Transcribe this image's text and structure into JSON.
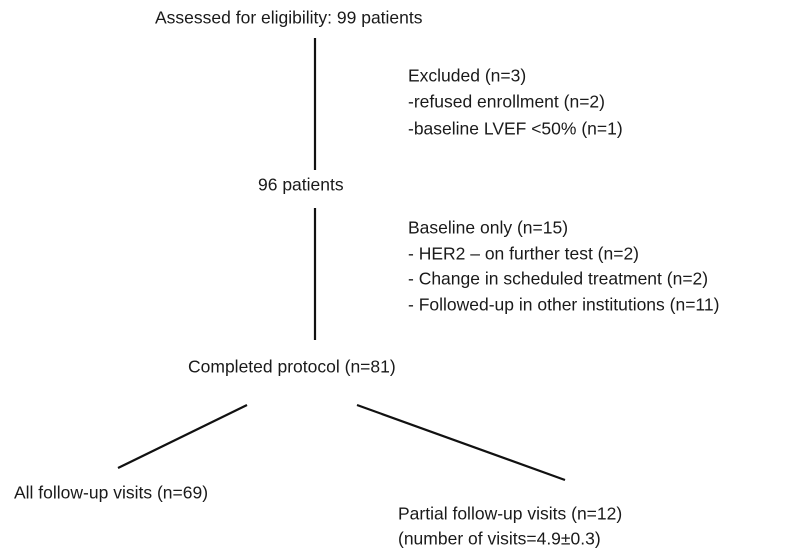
{
  "nodes": [
    {
      "lines": [
        "Assessed for eligibility: 99 patients"
      ]
    },
    {
      "lines": [
        "Excluded (n=3)",
        "-refused enrollment (n=2)",
        "-baseline LVEF <50% (n=1)"
      ]
    },
    {
      "lines": [
        "96 patients"
      ]
    },
    {
      "lines": [
        "Baseline only (n=15)",
        "- HER2 – on further test (n=2)",
        "- Change in scheduled treatment (n=2)",
        "- Followed-up in other institutions (n=11)"
      ]
    },
    {
      "lines": [
        "Completed protocol (n=81)"
      ]
    },
    {
      "lines": [
        "All follow-up visits (n=69)"
      ]
    },
    {
      "lines": [
        "Partial follow-up visits (n=12)",
        "(number of visits=4.9±0.3)"
      ]
    }
  ]
}
